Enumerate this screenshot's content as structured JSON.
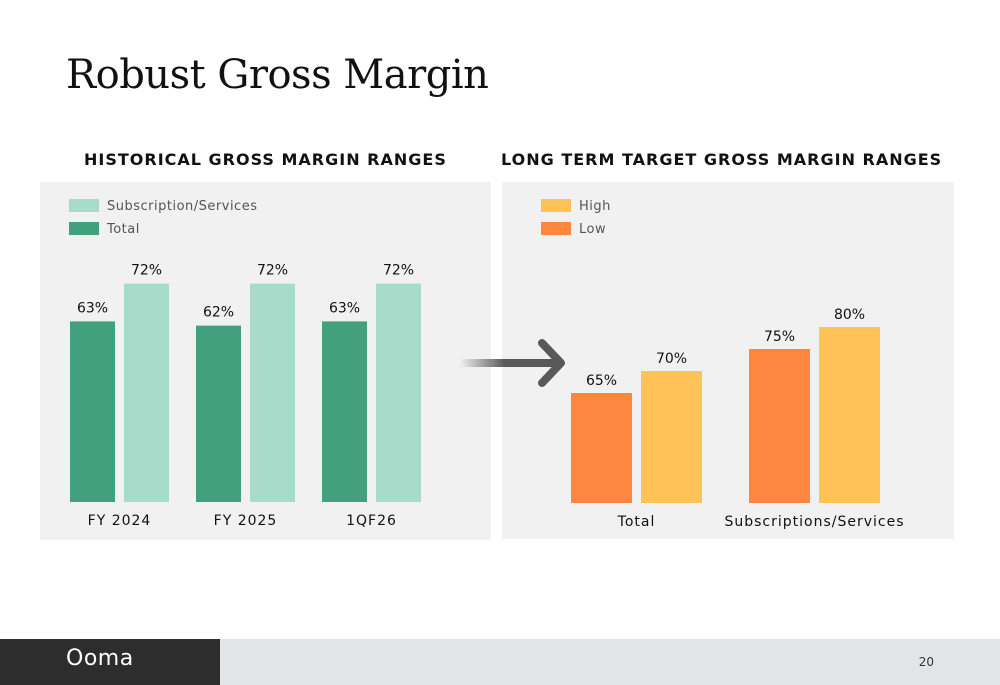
{
  "page": {
    "title": "Robust Gross Margin",
    "page_number": "20",
    "logo_text": "Ooma"
  },
  "colors": {
    "total": "#43a07e",
    "subscription": "#a6dcc9",
    "high": "#fec257",
    "low": "#fe873f",
    "panel": "#f1f1f1"
  },
  "chart_data": [
    {
      "type": "bar",
      "title": "HISTORICAL GROSS MARGIN RANGES",
      "categories": [
        "FY 2024",
        "FY 2025",
        "1QF26"
      ],
      "series": [
        {
          "name": "Total",
          "values": [
            63,
            62,
            63
          ],
          "labels": [
            "63%",
            "62%",
            "63%"
          ],
          "color": "#43a07e"
        },
        {
          "name": "Subscription/Services",
          "values": [
            72,
            72,
            72
          ],
          "labels": [
            "72%",
            "72%",
            "72%"
          ],
          "color": "#a6dcc9"
        }
      ],
      "legend_order": [
        "Subscription/Services",
        "Total"
      ],
      "legend": "top-left",
      "grid": false,
      "unit": "%"
    },
    {
      "type": "bar",
      "title": "LONG TERM TARGET GROSS MARGIN RANGES",
      "categories": [
        "Total",
        "Subscriptions/Services"
      ],
      "series": [
        {
          "name": "Low",
          "values": [
            65,
            75
          ],
          "labels": [
            "65%",
            "75%"
          ],
          "color": "#fe873f"
        },
        {
          "name": "High",
          "values": [
            70,
            80
          ],
          "labels": [
            "70%",
            "80%"
          ],
          "color": "#fec257"
        }
      ],
      "legend_order": [
        "High",
        "Low"
      ],
      "legend": "top-left",
      "grid": false,
      "unit": "%"
    }
  ]
}
